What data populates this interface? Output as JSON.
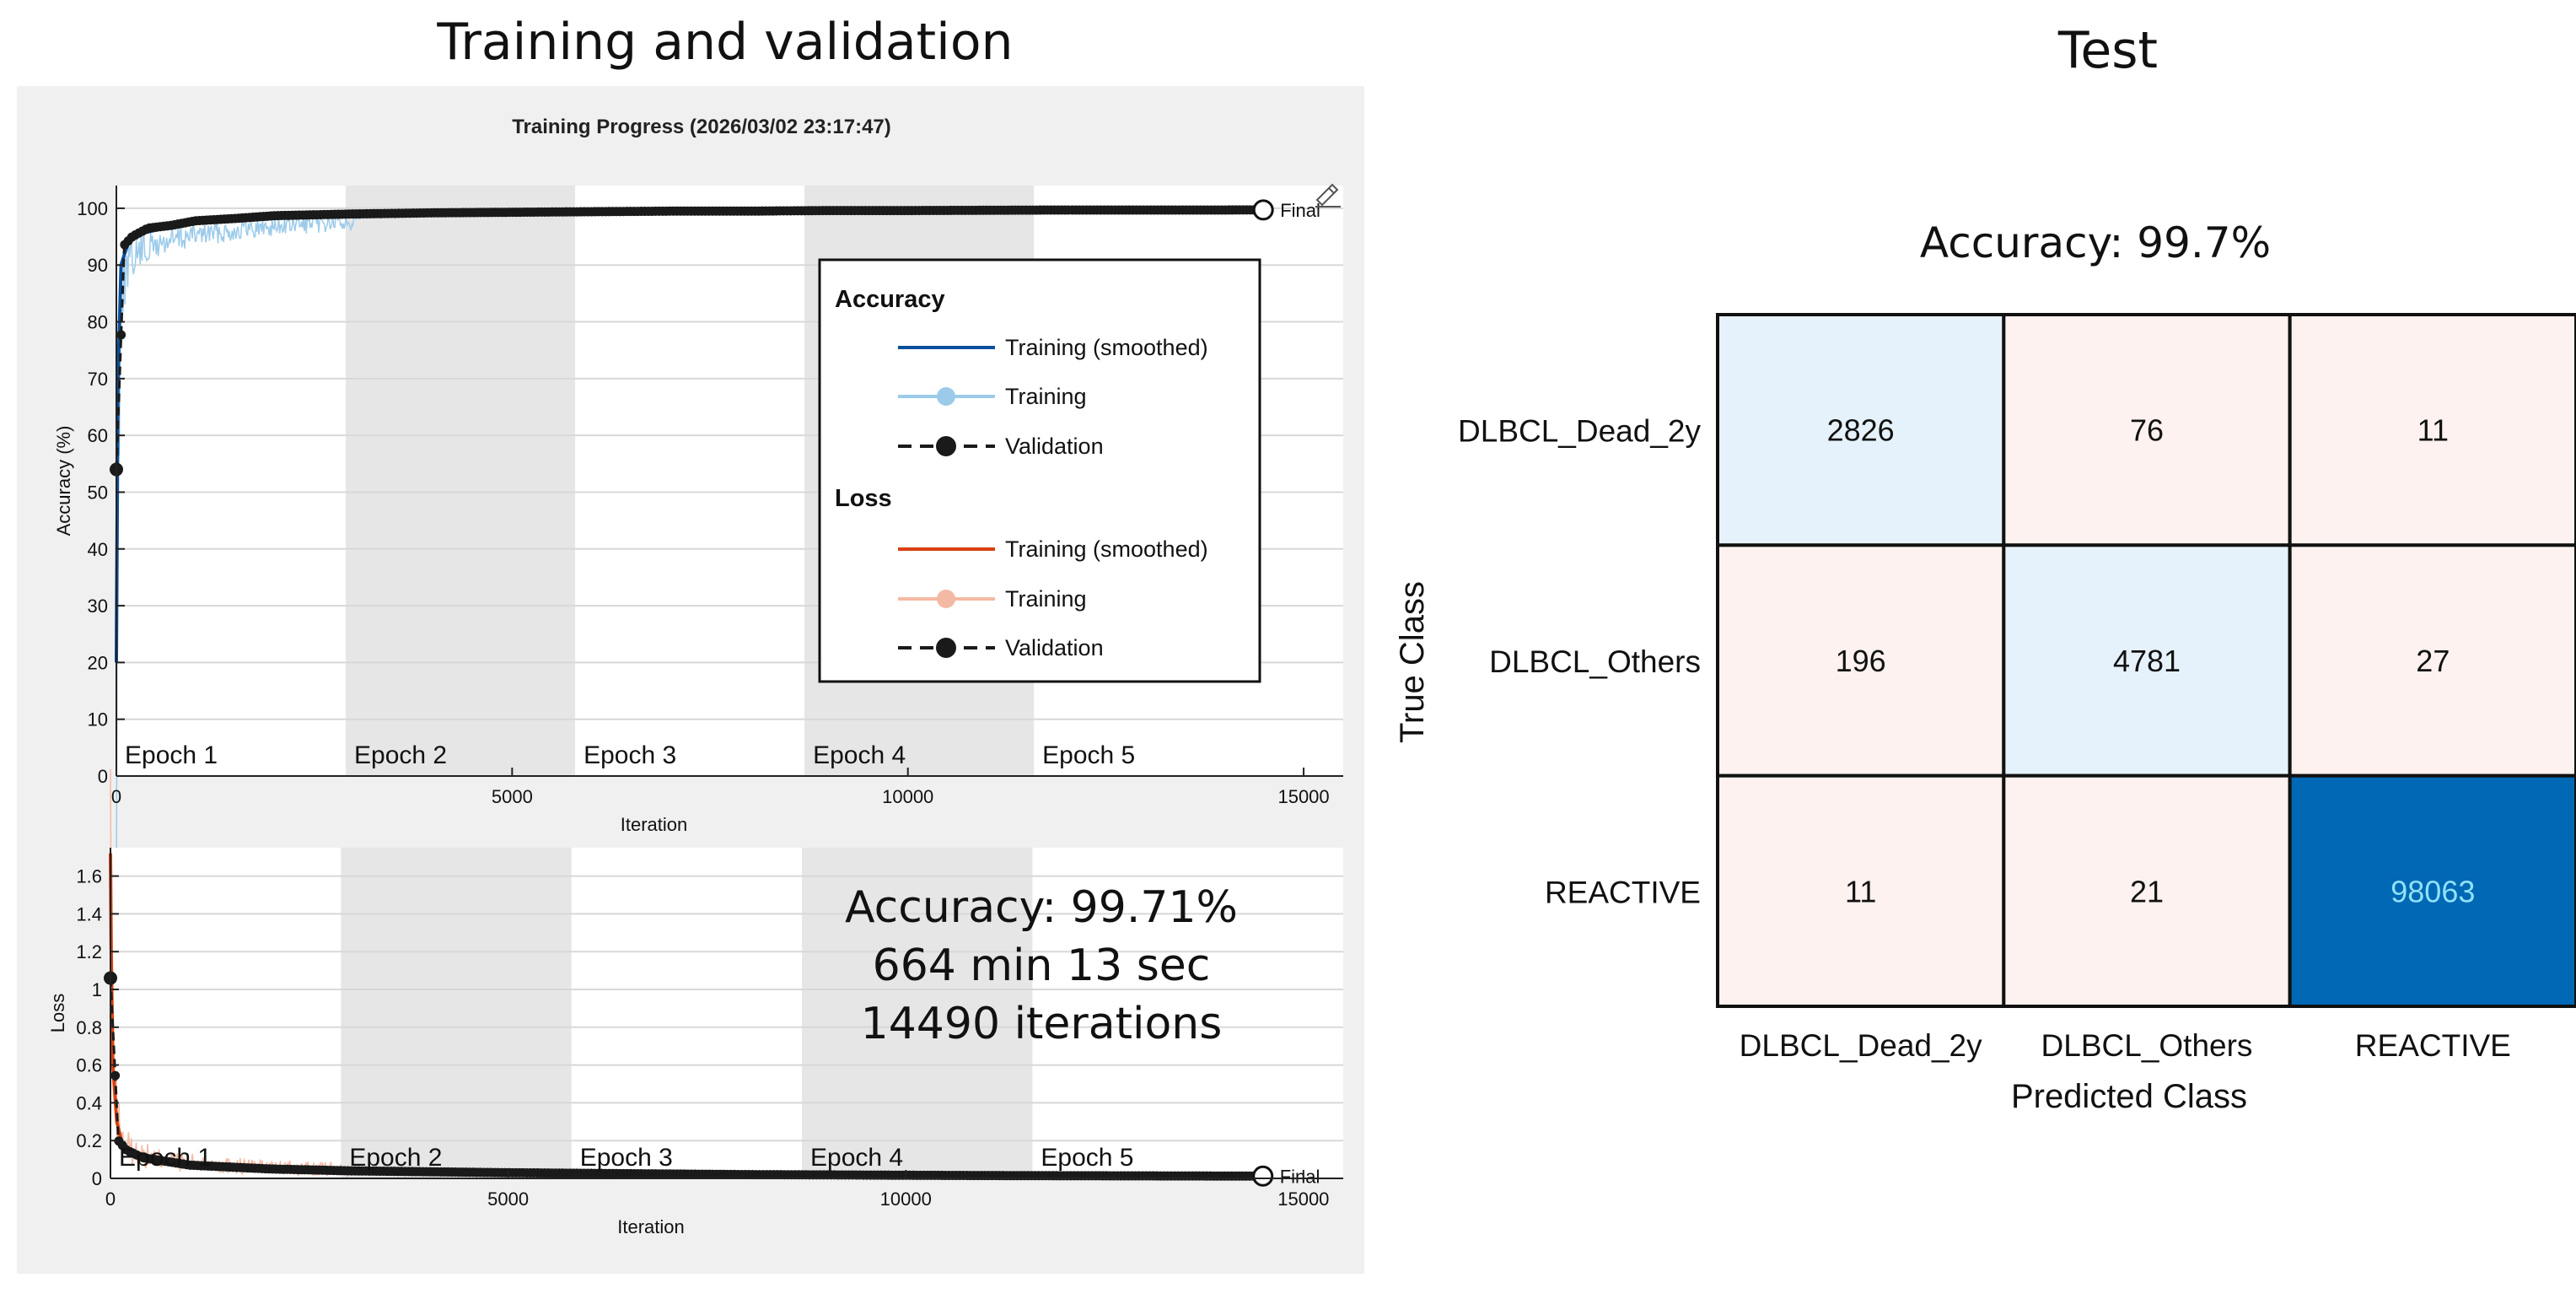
{
  "left_heading": "Training and validation",
  "right_heading": "Test",
  "training_window": {
    "title": "Training Progress (2026/03/02 23:17:47)",
    "final_label": "Final",
    "epochs": [
      "Epoch 1",
      "Epoch 2",
      "Epoch 3",
      "Epoch 4",
      "Epoch 5"
    ],
    "summary": [
      "Accuracy: 99.71%",
      "664 min 13 sec",
      "14490 iterations"
    ],
    "legend": {
      "accuracy_title": "Accuracy",
      "loss_title": "Loss",
      "accuracy_items": [
        "Training (smoothed)",
        "Training",
        "Validation"
      ],
      "loss_items": [
        "Training (smoothed)",
        "Training",
        "Validation"
      ]
    },
    "colors": {
      "panel_bg": "#f0f0f0",
      "epoch_shade": "#e6e6e6",
      "acc_smoothed": "#0a4f9c",
      "acc_raw": "#9ccbea",
      "loss_smoothed": "#d9400f",
      "loss_raw": "#f4b9a3",
      "validation": "#1a1a1a"
    }
  },
  "chart_data": [
    {
      "type": "line",
      "title": "",
      "xlabel": "Iteration",
      "ylabel": "Accuracy (%)",
      "xlim": [
        0,
        15500
      ],
      "ylim": [
        0,
        104
      ],
      "xticks": [
        0,
        5000,
        10000,
        15000
      ],
      "yticks": [
        0,
        10,
        20,
        30,
        40,
        50,
        60,
        70,
        80,
        90,
        100
      ],
      "grid": true,
      "legend_position": "right",
      "epoch_boundaries": [
        0,
        2898,
        5796,
        8694,
        11592,
        14490
      ],
      "series": [
        {
          "name": "Training (smoothed)",
          "x": [
            0,
            20,
            60,
            150,
            300,
            600,
            1000,
            2000,
            3000,
            5000,
            8000,
            11000,
            14490
          ],
          "y": [
            20,
            70,
            90,
            94,
            95.5,
            96.5,
            97.5,
            98.5,
            99,
            99.4,
            99.6,
            99.7,
            99.75
          ]
        },
        {
          "name": "Training"
        },
        {
          "name": "Validation",
          "x": [
            0,
            100,
            200,
            400,
            700,
            1000,
            1500,
            2000,
            3000,
            4000,
            5000,
            6000,
            7000,
            8000,
            9000,
            10000,
            11000,
            12000,
            13000,
            14000,
            14490
          ],
          "y": [
            54,
            93.5,
            95,
            96.5,
            97,
            97.8,
            98.2,
            98.7,
            99,
            99.2,
            99.3,
            99.4,
            99.5,
            99.5,
            99.6,
            99.6,
            99.65,
            99.7,
            99.7,
            99.7,
            99.71
          ]
        }
      ]
    },
    {
      "type": "line",
      "title": "",
      "xlabel": "Iteration",
      "ylabel": "Loss",
      "xlim": [
        0,
        15500
      ],
      "ylim": [
        0,
        1.75
      ],
      "xticks": [
        0,
        5000,
        10000,
        15000
      ],
      "yticks": [
        0,
        0.2,
        0.4,
        0.6,
        0.8,
        1,
        1.2,
        1.4,
        1.6
      ],
      "grid": true,
      "epoch_boundaries": [
        0,
        2898,
        5796,
        8694,
        11592,
        14490
      ],
      "series": [
        {
          "name": "Training (smoothed)",
          "x": [
            0,
            10,
            30,
            80,
            150,
            300,
            600,
            1000,
            2000,
            3000,
            5000,
            8000,
            11000,
            14490
          ],
          "y": [
            1.72,
            1.2,
            0.6,
            0.3,
            0.18,
            0.12,
            0.09,
            0.07,
            0.05,
            0.035,
            0.025,
            0.018,
            0.014,
            0.012
          ]
        },
        {
          "name": "Training"
        },
        {
          "name": "Validation",
          "x": [
            0,
            100,
            200,
            400,
            700,
            1000,
            2000,
            3000,
            5000,
            8000,
            11000,
            14490
          ],
          "y": [
            1.06,
            0.2,
            0.15,
            0.11,
            0.09,
            0.07,
            0.05,
            0.04,
            0.03,
            0.02,
            0.015,
            0.012
          ]
        }
      ]
    },
    {
      "type": "heatmap",
      "title": "Accuracy: 99.7%",
      "xlabel": "Predicted Class",
      "ylabel": "True Class",
      "x_categories": [
        "DLBCL_Dead_2y",
        "DLBCL_Others",
        "REACTIVE"
      ],
      "y_categories": [
        "DLBCL_Dead_2y",
        "DLBCL_Others",
        "REACTIVE"
      ],
      "values": [
        [
          2826,
          76,
          11
        ],
        [
          196,
          4781,
          27
        ],
        [
          11,
          21,
          98063
        ]
      ],
      "colors": {
        "diag_light": "#e6f2fb",
        "off_diag": "#fdf2ef",
        "diag_dark": "#0068b4",
        "dark_text": "#8fe1f8"
      }
    }
  ]
}
